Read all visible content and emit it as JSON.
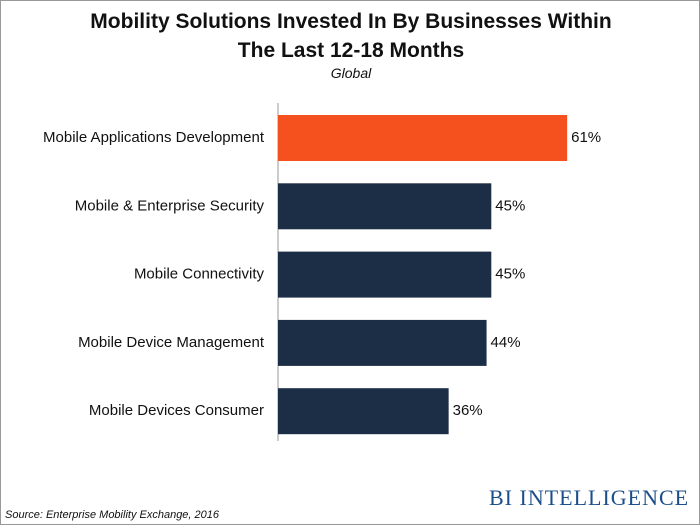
{
  "chart_data": {
    "type": "bar",
    "orientation": "horizontal",
    "title": "Mobility Solutions Invested In By Businesses Within The Last 12-18 Months",
    "subtitle": "Global",
    "categories": [
      "Mobile Applications Development",
      "Mobile & Enterprise Security",
      "Mobile Connectivity",
      "Mobile Device Management",
      "Mobile Devices Consumer"
    ],
    "values": [
      61,
      45,
      45,
      44,
      36
    ],
    "value_labels": [
      "61%",
      "45%",
      "45%",
      "44%",
      "36%"
    ],
    "colors": [
      "#f4511e",
      "#1c2e45",
      "#1c2e45",
      "#1c2e45",
      "#1c2e45"
    ],
    "source": "Source: Enterprise Mobility Exchange, 2016",
    "logo": "BI INTELLIGENCE"
  }
}
